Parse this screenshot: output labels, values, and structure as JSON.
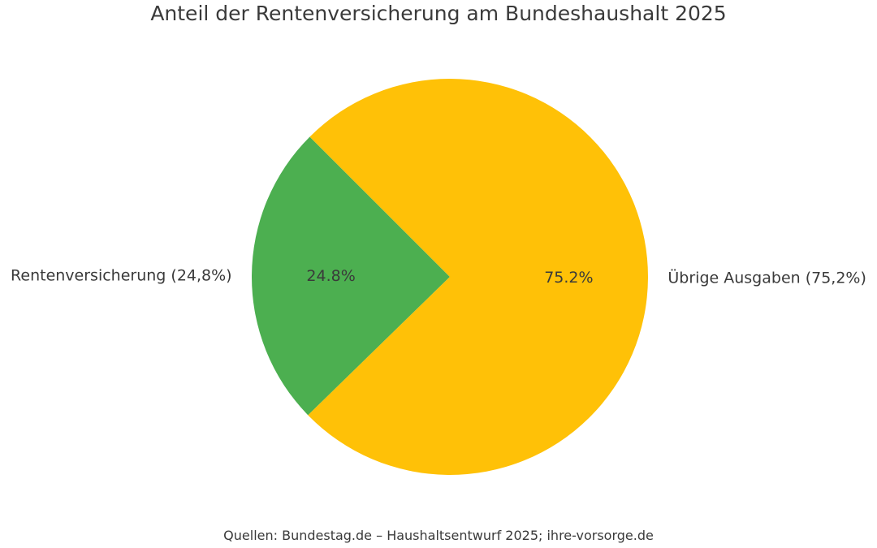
{
  "chart_data": {
    "type": "pie",
    "title": "Anteil der Rentenversicherung am Bundeshaushalt 2025",
    "slices": [
      {
        "label": "Rentenversicherung (24,8%)",
        "value": 24.8,
        "pct_label": "24.8%",
        "color": "#4caf50"
      },
      {
        "label": "Übrige Ausgaben (75,2%)",
        "value": 75.2,
        "pct_label": "75.2%",
        "color": "#ffc107"
      }
    ],
    "legend": "none",
    "start_angle_deg": 135,
    "direction": "counterclockwise"
  },
  "footer": {
    "source": "Quellen: Bundestag.de – Haushaltsentwurf 2025; ihre-vorsorge.de"
  }
}
